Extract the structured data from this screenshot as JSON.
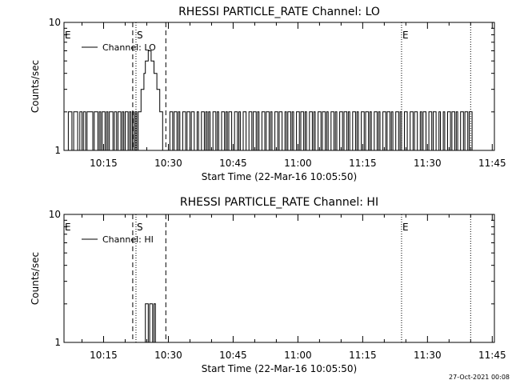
{
  "footer": {
    "timestamp": "27-Oct-2021 00:08"
  },
  "chart_data": [
    {
      "type": "line",
      "title": "RHESSI PARTICLE_RATE Channel: LO",
      "xlabel": "Start Time (22-Mar-16 10:05:50)",
      "ylabel": "Counts/sec",
      "y_scale": "log",
      "ylim": [
        1,
        10
      ],
      "xlim": [
        "10:05:50",
        "11:45:30"
      ],
      "y_ticks": [
        "1",
        "10"
      ],
      "x_ticks": [
        "10:15",
        "10:30",
        "10:45",
        "11:00",
        "11:15",
        "11:30",
        "11:45"
      ],
      "grid": false,
      "legend": {
        "position": "top-left",
        "entries": [
          "Channel: LO"
        ]
      },
      "markers": [
        {
          "label": "E",
          "time": "10:05:50",
          "style": "dotted"
        },
        {
          "label": "S",
          "time": "10:22:30",
          "style": "dotted"
        },
        {
          "label": "",
          "time": "10:21:45",
          "style": "dashed"
        },
        {
          "label": "",
          "time": "10:29:25",
          "style": "dashed"
        },
        {
          "label": "E",
          "time": "11:24:00",
          "style": "dotted"
        },
        {
          "label": "",
          "time": "11:40:00",
          "style": "dotted"
        }
      ],
      "series": [
        {
          "values": [
            [
              "10:06:20",
              1
            ],
            [
              "10:06:50",
              2
            ],
            [
              "10:07:40",
              1
            ],
            [
              "10:08:05",
              2
            ],
            [
              "10:09:00",
              1
            ],
            [
              "10:09:30",
              2
            ],
            [
              "10:10:00",
              1
            ],
            [
              "10:10:20",
              2
            ],
            [
              "10:10:50",
              1
            ],
            [
              "10:11:10",
              2
            ],
            [
              "10:12:30",
              1
            ],
            [
              "10:12:50",
              2
            ],
            [
              "10:13:40",
              1
            ],
            [
              "10:14:00",
              2
            ],
            [
              "10:14:20",
              1
            ],
            [
              "10:14:40",
              2
            ],
            [
              "10:15:20",
              1
            ],
            [
              "10:15:40",
              2
            ],
            [
              "10:16:00",
              1
            ],
            [
              "10:16:20",
              2
            ],
            [
              "10:17:10",
              1
            ],
            [
              "10:17:30",
              2
            ],
            [
              "10:18:00",
              1
            ],
            [
              "10:18:20",
              2
            ],
            [
              "10:19:00",
              1
            ],
            [
              "10:19:20",
              2
            ],
            [
              "10:19:40",
              1
            ],
            [
              "10:20:00",
              2
            ],
            [
              "10:20:40",
              1
            ],
            [
              "10:21:00",
              2
            ],
            [
              "10:21:20",
              1
            ],
            [
              "10:21:40",
              2
            ],
            [
              "10:22:00",
              1
            ],
            [
              "10:22:20",
              2
            ],
            [
              "10:22:40",
              1
            ],
            [
              "10:23:00",
              2
            ],
            [
              "10:23:40",
              3
            ],
            [
              "10:24:20",
              4
            ],
            [
              "10:24:40",
              5
            ],
            [
              "10:25:20",
              6
            ],
            [
              "10:26:00",
              5
            ],
            [
              "10:26:40",
              4
            ],
            [
              "10:27:20",
              3
            ],
            [
              "10:28:00",
              2
            ],
            [
              "10:28:40",
              1
            ],
            [
              "10:30:20",
              2
            ],
            [
              "10:31:00",
              1
            ],
            [
              "10:31:20",
              2
            ],
            [
              "10:32:00",
              1
            ],
            [
              "10:32:20",
              2
            ],
            [
              "10:32:40",
              1
            ],
            [
              "10:33:20",
              2
            ],
            [
              "10:34:00",
              1
            ],
            [
              "10:34:20",
              2
            ],
            [
              "10:35:00",
              1
            ],
            [
              "10:35:20",
              2
            ],
            [
              "10:36:00",
              1
            ],
            [
              "10:36:40",
              2
            ],
            [
              "10:37:00",
              1
            ],
            [
              "10:37:40",
              2
            ],
            [
              "10:38:20",
              1
            ],
            [
              "10:38:40",
              2
            ],
            [
              "10:39:00",
              1
            ],
            [
              "10:39:20",
              2
            ],
            [
              "10:39:40",
              1
            ],
            [
              "10:40:20",
              2
            ],
            [
              "10:41:00",
              1
            ],
            [
              "10:41:20",
              2
            ],
            [
              "10:41:40",
              1
            ],
            [
              "10:42:20",
              2
            ],
            [
              "10:43:00",
              1
            ],
            [
              "10:43:20",
              2
            ],
            [
              "10:43:40",
              1
            ],
            [
              "10:44:00",
              2
            ],
            [
              "10:44:40",
              1
            ],
            [
              "10:45:20",
              2
            ],
            [
              "10:46:00",
              1
            ],
            [
              "10:46:20",
              2
            ],
            [
              "10:46:40",
              1
            ],
            [
              "10:47:20",
              2
            ],
            [
              "10:48:00",
              1
            ],
            [
              "10:48:40",
              2
            ],
            [
              "10:49:20",
              1
            ],
            [
              "10:49:40",
              2
            ],
            [
              "10:50:20",
              1
            ],
            [
              "10:50:40",
              2
            ],
            [
              "10:51:00",
              1
            ],
            [
              "10:51:40",
              2
            ],
            [
              "10:52:20",
              1
            ],
            [
              "10:52:40",
              2
            ],
            [
              "10:53:20",
              1
            ],
            [
              "10:53:40",
              2
            ],
            [
              "10:54:00",
              1
            ],
            [
              "10:54:40",
              2
            ],
            [
              "10:55:20",
              1
            ],
            [
              "10:55:40",
              2
            ],
            [
              "10:56:20",
              1
            ],
            [
              "10:57:00",
              2
            ],
            [
              "10:57:20",
              1
            ],
            [
              "10:57:40",
              2
            ],
            [
              "10:58:20",
              1
            ],
            [
              "10:58:40",
              2
            ],
            [
              "10:59:00",
              1
            ],
            [
              "10:59:40",
              2
            ],
            [
              "11:00:20",
              1
            ],
            [
              "11:00:40",
              2
            ],
            [
              "11:01:20",
              1
            ],
            [
              "11:01:40",
              2
            ],
            [
              "11:02:00",
              1
            ],
            [
              "11:02:40",
              2
            ],
            [
              "11:03:20",
              1
            ],
            [
              "11:03:40",
              2
            ],
            [
              "11:04:00",
              1
            ],
            [
              "11:04:40",
              2
            ],
            [
              "11:05:20",
              1
            ],
            [
              "11:05:40",
              2
            ],
            [
              "11:06:20",
              1
            ],
            [
              "11:06:40",
              2
            ],
            [
              "11:07:00",
              1
            ],
            [
              "11:07:40",
              2
            ],
            [
              "11:08:20",
              1
            ],
            [
              "11:08:40",
              2
            ],
            [
              "11:09:00",
              1
            ],
            [
              "11:09:40",
              2
            ],
            [
              "11:10:20",
              1
            ],
            [
              "11:10:40",
              2
            ],
            [
              "11:11:20",
              1
            ],
            [
              "11:11:40",
              2
            ],
            [
              "11:12:00",
              1
            ],
            [
              "11:12:40",
              2
            ],
            [
              "11:13:20",
              1
            ],
            [
              "11:13:40",
              2
            ],
            [
              "11:14:00",
              1
            ],
            [
              "11:14:40",
              2
            ],
            [
              "11:15:20",
              1
            ],
            [
              "11:15:40",
              2
            ],
            [
              "11:16:20",
              1
            ],
            [
              "11:16:40",
              2
            ],
            [
              "11:17:00",
              1
            ],
            [
              "11:17:40",
              2
            ],
            [
              "11:18:20",
              1
            ],
            [
              "11:18:40",
              2
            ],
            [
              "11:19:00",
              1
            ],
            [
              "11:19:40",
              2
            ],
            [
              "11:20:20",
              1
            ],
            [
              "11:20:40",
              2
            ],
            [
              "11:21:20",
              1
            ],
            [
              "11:21:40",
              2
            ],
            [
              "11:22:00",
              1
            ],
            [
              "11:22:40",
              2
            ],
            [
              "11:23:20",
              1
            ],
            [
              "11:23:40",
              2
            ],
            [
              "11:24:00",
              1
            ],
            [
              "11:24:40",
              2
            ],
            [
              "11:25:20",
              1
            ],
            [
              "11:26:00",
              2
            ],
            [
              "11:26:40",
              1
            ],
            [
              "11:27:00",
              2
            ],
            [
              "11:27:40",
              1
            ],
            [
              "11:28:20",
              2
            ],
            [
              "11:28:40",
              1
            ],
            [
              "11:29:00",
              2
            ],
            [
              "11:29:40",
              1
            ],
            [
              "11:30:20",
              2
            ],
            [
              "11:31:00",
              1
            ],
            [
              "11:31:20",
              2
            ],
            [
              "11:32:00",
              1
            ],
            [
              "11:32:40",
              2
            ],
            [
              "11:33:00",
              1
            ],
            [
              "11:33:40",
              2
            ],
            [
              "11:34:00",
              1
            ],
            [
              "11:34:40",
              2
            ],
            [
              "11:35:20",
              1
            ],
            [
              "11:35:40",
              2
            ],
            [
              "11:36:20",
              1
            ],
            [
              "11:36:40",
              2
            ],
            [
              "11:37:00",
              1
            ],
            [
              "11:37:40",
              2
            ],
            [
              "11:38:20",
              1
            ],
            [
              "11:38:40",
              2
            ],
            [
              "11:39:20",
              1
            ],
            [
              "11:39:40",
              2
            ],
            [
              "11:40:20",
              1
            ]
          ]
        }
      ]
    },
    {
      "type": "line",
      "title": "RHESSI PARTICLE_RATE Channel: HI",
      "xlabel": "Start Time (22-Mar-16 10:05:50)",
      "ylabel": "Counts/sec",
      "y_scale": "log",
      "ylim": [
        1,
        10
      ],
      "xlim": [
        "10:05:50",
        "11:45:30"
      ],
      "y_ticks": [
        "1",
        "10"
      ],
      "x_ticks": [
        "10:15",
        "10:30",
        "10:45",
        "11:00",
        "11:15",
        "11:30",
        "11:45"
      ],
      "grid": false,
      "legend": {
        "position": "top-left",
        "entries": [
          "Channel: HI"
        ]
      },
      "markers": [
        {
          "label": "E",
          "time": "10:05:50",
          "style": "dotted"
        },
        {
          "label": "S",
          "time": "10:22:30",
          "style": "dotted"
        },
        {
          "label": "",
          "time": "10:21:45",
          "style": "dashed"
        },
        {
          "label": "",
          "time": "10:29:25",
          "style": "dashed"
        },
        {
          "label": "E",
          "time": "11:24:00",
          "style": "dotted"
        },
        {
          "label": "",
          "time": "11:40:00",
          "style": "dotted"
        }
      ],
      "series": [
        {
          "values": [
            [
              "10:23:00",
              1
            ],
            [
              "10:24:40",
              2
            ],
            [
              "10:25:20",
              1
            ],
            [
              "10:25:40",
              2
            ],
            [
              "10:26:20",
              1
            ],
            [
              "10:26:40",
              2
            ],
            [
              "10:27:00",
              1
            ]
          ]
        }
      ]
    }
  ]
}
